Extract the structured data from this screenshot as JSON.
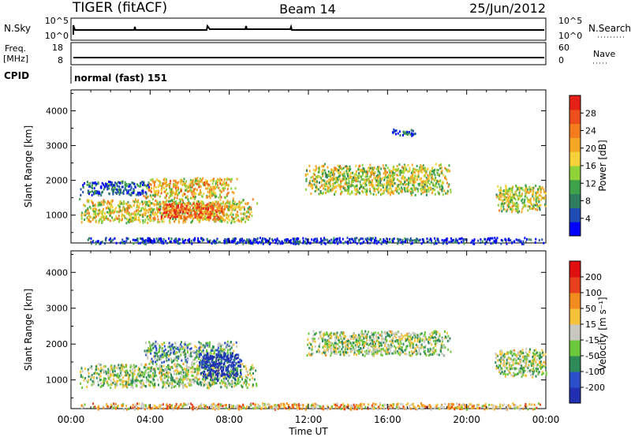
{
  "header": {
    "station": "TIGER (fitACF)",
    "beam": "Beam 14",
    "date": "25/Jun/2012"
  },
  "strips": {
    "nsky": {
      "label": "N.Sky",
      "ticks": [
        "10^5",
        "10^0"
      ]
    },
    "nsearch": {
      "label": "N.Search",
      "ticks": [
        "10^5",
        "10^0"
      ]
    },
    "freq": {
      "label_line1": "Freq.",
      "label_line2": "[MHz]",
      "ticks": [
        "18",
        "8"
      ]
    },
    "nave": {
      "label": "Nave",
      "ticks": [
        "60",
        "0"
      ]
    },
    "cpid": {
      "label": "CPID",
      "value": "normal (fast) 151"
    }
  },
  "chart_data": [
    {
      "type": "heatmap",
      "name": "power",
      "ylabel": "Slant Range [km]",
      "ylim": [
        200,
        4600
      ],
      "yticks": [
        1000,
        2000,
        3000,
        4000
      ],
      "xlim": [
        0,
        24
      ],
      "colorbar": {
        "label": "Power [dB]",
        "ticks": [
          "28",
          "24",
          "20",
          "16",
          "12",
          "8",
          "4"
        ],
        "colors": [
          "#0000ff",
          "#1f4bb5",
          "#2e7d5f",
          "#3ea24b",
          "#8fd23a",
          "#f5d23a",
          "#f5a623",
          "#f27c1e",
          "#ee4d1c",
          "#e52016"
        ]
      },
      "regions": [
        {
          "t0": 0.4,
          "t1": 9.4,
          "r0": 800,
          "r1": 1500,
          "level": 0.55
        },
        {
          "t0": 3.6,
          "t1": 8.4,
          "r0": 1500,
          "r1": 2100,
          "level": 0.6
        },
        {
          "t0": 4.2,
          "t1": 7.8,
          "r0": 900,
          "r1": 1400,
          "level": 0.8
        },
        {
          "t0": 0.4,
          "t1": 4.0,
          "r0": 1600,
          "r1": 2000,
          "level": 0.2
        },
        {
          "t0": 11.8,
          "t1": 19.2,
          "r0": 1600,
          "r1": 2500,
          "level": 0.5
        },
        {
          "t0": 16.2,
          "t1": 17.4,
          "r0": 3300,
          "r1": 3500,
          "level": 0.15
        },
        {
          "t0": 21.4,
          "t1": 24.0,
          "r0": 1100,
          "r1": 1900,
          "level": 0.5
        },
        {
          "t0": 0.4,
          "t1": 24.0,
          "r0": 200,
          "r1": 380,
          "level": 0.1
        }
      ]
    },
    {
      "type": "heatmap",
      "name": "velocity",
      "ylabel": "Slant Range [km]",
      "ylim": [
        200,
        4600
      ],
      "yticks": [
        1000,
        2000,
        3000,
        4000
      ],
      "xlim": [
        0,
        24
      ],
      "xlabel": "Time UT",
      "xticks": [
        "00:00",
        "04:00",
        "08:00",
        "12:00",
        "16:00",
        "20:00",
        "00:00"
      ],
      "colorbar": {
        "label": "Velocity [m s⁻¹]",
        "ticks": [
          "200",
          "100",
          "50",
          "15",
          "-15",
          "-50",
          "-100",
          "-200"
        ],
        "colors": [
          "#2030b0",
          "#2a4fc8",
          "#2e8b57",
          "#6cc83a",
          "#c8c8c0",
          "#f5c23a",
          "#f28c1e",
          "#e8401c",
          "#e01010"
        ]
      },
      "regions": [
        {
          "t0": 0.4,
          "t1": 9.4,
          "r0": 800,
          "r1": 1500,
          "level": 0.45
        },
        {
          "t0": 3.6,
          "t1": 8.4,
          "r0": 1500,
          "r1": 2100,
          "level": 0.35
        },
        {
          "t0": 6.4,
          "t1": 8.6,
          "r0": 1000,
          "r1": 1800,
          "level": 0.05
        },
        {
          "t0": 11.8,
          "t1": 19.2,
          "r0": 1700,
          "r1": 2400,
          "level": 0.45
        },
        {
          "t0": 21.4,
          "t1": 24.0,
          "r0": 1100,
          "r1": 1900,
          "level": 0.45
        },
        {
          "t0": 0.4,
          "t1": 24.0,
          "r0": 200,
          "r1": 380,
          "level": 0.62
        }
      ]
    }
  ]
}
